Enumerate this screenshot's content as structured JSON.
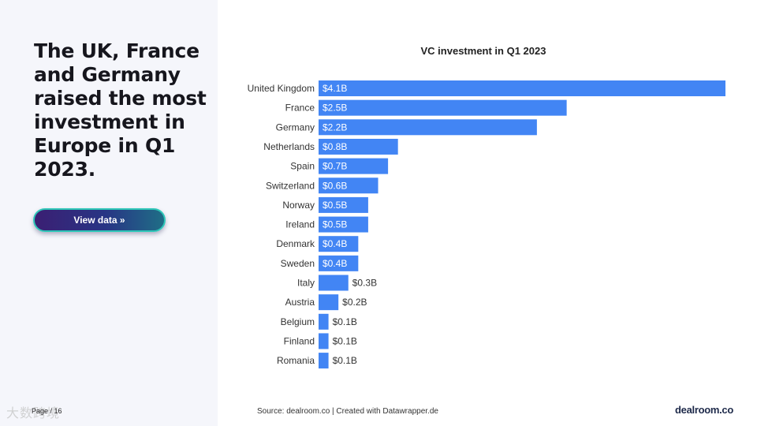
{
  "headline": "The UK, France and Germany raised the most investment in Europe in Q1 2023.",
  "view_button": {
    "label": "View data »"
  },
  "page_number": "Page / 16",
  "watermark": "大数跨境",
  "source": "Source: dealroom.co | Created with Datawrapper.de",
  "brand": "dealroom.co",
  "colors": {
    "bar": "#4285f4",
    "label_inside": "#ffffff",
    "label_outside": "#333333"
  },
  "chart_data": {
    "type": "bar",
    "orientation": "horizontal",
    "title": "VC investment in Q1 2023",
    "categories": [
      "United Kingdom",
      "France",
      "Germany",
      "Netherlands",
      "Spain",
      "Switzerland",
      "Norway",
      "Ireland",
      "Denmark",
      "Sweden",
      "Italy",
      "Austria",
      "Belgium",
      "Finland",
      "Romania"
    ],
    "values": [
      4.1,
      2.5,
      2.2,
      0.8,
      0.7,
      0.6,
      0.5,
      0.5,
      0.4,
      0.4,
      0.3,
      0.2,
      0.1,
      0.1,
      0.1
    ],
    "value_labels": [
      "$4.1B",
      "$2.5B",
      "$2.2B",
      "$0.8B",
      "$0.7B",
      "$0.6B",
      "$0.5B",
      "$0.5B",
      "$0.4B",
      "$0.4B",
      "$0.3B",
      "$0.2B",
      "$0.1B",
      "$0.1B",
      "$0.1B"
    ],
    "unit": "$B",
    "xlim": [
      0,
      4.1
    ],
    "grid": false,
    "legend": "none"
  }
}
